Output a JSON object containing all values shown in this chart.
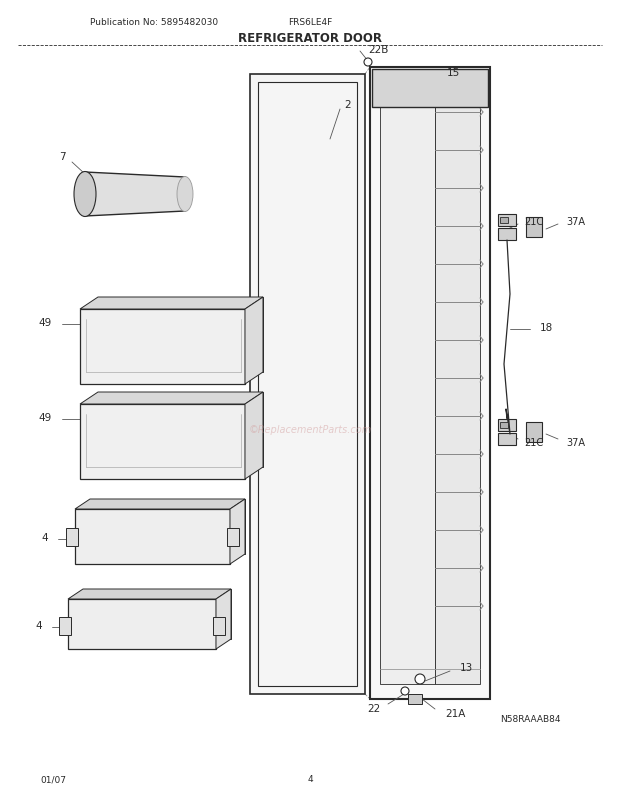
{
  "title": "REFRIGERATOR DOOR",
  "pub_no": "Publication No: 5895482030",
  "model": "FRS6LE4F",
  "date": "01/07",
  "page": "4",
  "image_code": "N58RAAAB84",
  "watermark": "©ReplacementParts.com",
  "bg_color": "#ffffff",
  "line_color": "#2a2a2a"
}
